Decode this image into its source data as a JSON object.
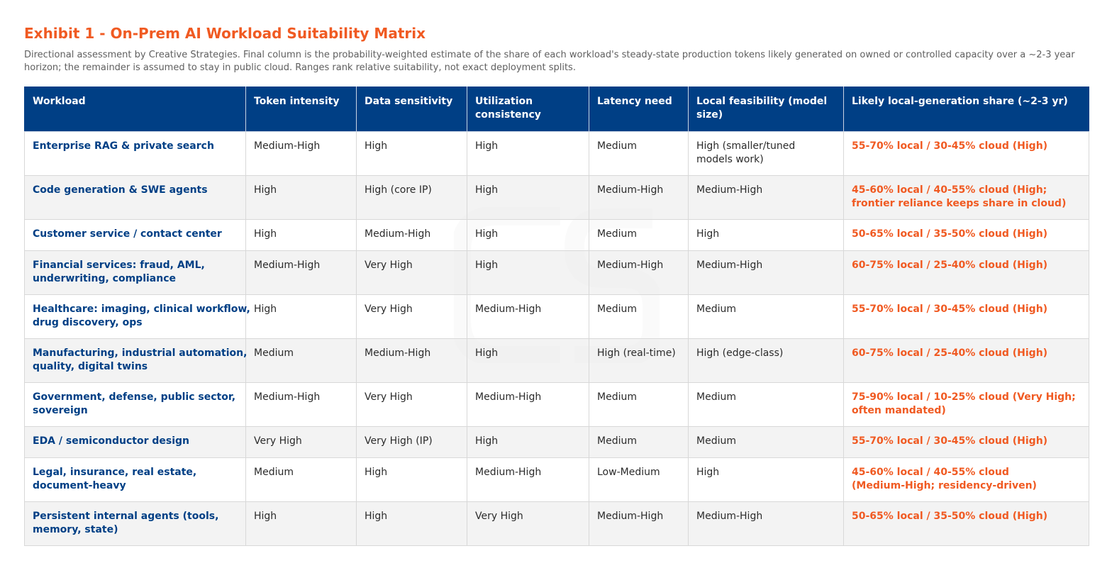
{
  "exhibit": {
    "title": "Exhibit 1 - On-Prem AI Workload Suitability Matrix",
    "subtitle_line1": "Directional assessment by Creative Strategies. Final column is the probability-weighted estimate of the share of each workload's steady-state production tokens likely generated on owned or controlled capacity over a ~2-3 year",
    "subtitle_line2": "horizon; the remainder is assumed to stay in public cloud. Ranges rank relative suitability, not exact deployment splits.",
    "watermark_icon": "cs-logo-watermark"
  },
  "table": {
    "headers": {
      "workload": "Workload",
      "token_intensity": "Token intensity",
      "data_sensitivity": "Data sensitivity",
      "utilization_1": "Utilization",
      "utilization_2": "consistency",
      "latency": "Latency need",
      "feasibility_1": "Local feasibility (model",
      "feasibility_2": "size)",
      "share": "Likely local-generation share (~2-3 yr)"
    },
    "rows": [
      {
        "workload_1": "Enterprise RAG & private search",
        "workload_2": "",
        "token_intensity": "Medium-High",
        "data_sensitivity": "High",
        "utilization": "High",
        "latency": "Medium",
        "feasibility_1": "High (smaller/tuned",
        "feasibility_2": "models work)",
        "share_1": "55-70% local / 30-45% cloud (High)",
        "share_2": ""
      },
      {
        "workload_1": "Code generation & SWE agents",
        "workload_2": "",
        "token_intensity": "High",
        "data_sensitivity": "High (core IP)",
        "utilization": "High",
        "latency": "Medium-High",
        "feasibility_1": "Medium-High",
        "feasibility_2": "",
        "share_1": "45-60% local / 40-55% cloud (High;",
        "share_2": "frontier reliance keeps share in cloud)"
      },
      {
        "workload_1": "Customer service / contact center",
        "workload_2": "",
        "token_intensity": "High",
        "data_sensitivity": "Medium-High",
        "utilization": "High",
        "latency": "Medium",
        "feasibility_1": "High",
        "feasibility_2": "",
        "share_1": "50-65% local / 35-50% cloud (High)",
        "share_2": ""
      },
      {
        "workload_1": "Financial services: fraud, AML,",
        "workload_2": "underwriting, compliance",
        "token_intensity": "Medium-High",
        "data_sensitivity": "Very High",
        "utilization": "High",
        "latency": "Medium-High",
        "feasibility_1": "Medium-High",
        "feasibility_2": "",
        "share_1": "60-75% local / 25-40% cloud (High)",
        "share_2": ""
      },
      {
        "workload_1": "Healthcare: imaging, clinical workflow,",
        "workload_2": "drug discovery, ops",
        "token_intensity": "High",
        "data_sensitivity": "Very High",
        "utilization": "Medium-High",
        "latency": "Medium",
        "feasibility_1": "Medium",
        "feasibility_2": "",
        "share_1": "55-70% local / 30-45% cloud (High)",
        "share_2": ""
      },
      {
        "workload_1": "Manufacturing, industrial automation,",
        "workload_2": "quality, digital twins",
        "token_intensity": "Medium",
        "data_sensitivity": "Medium-High",
        "utilization": "High",
        "latency": "High (real-time)",
        "feasibility_1": "High (edge-class)",
        "feasibility_2": "",
        "share_1": "60-75% local / 25-40% cloud (High)",
        "share_2": ""
      },
      {
        "workload_1": "Government, defense, public sector,",
        "workload_2": "sovereign",
        "token_intensity": "Medium-High",
        "data_sensitivity": "Very High",
        "utilization": "Medium-High",
        "latency": "Medium",
        "feasibility_1": "Medium",
        "feasibility_2": "",
        "share_1": "75-90% local / 10-25% cloud (Very High;",
        "share_2": "often mandated)"
      },
      {
        "workload_1": "EDA / semiconductor design",
        "workload_2": "",
        "token_intensity": "Very High",
        "data_sensitivity": "Very High (IP)",
        "utilization": "High",
        "latency": "Medium",
        "feasibility_1": "Medium",
        "feasibility_2": "",
        "share_1": "55-70% local / 30-45% cloud (High)",
        "share_2": ""
      },
      {
        "workload_1": "Legal, insurance, real estate,",
        "workload_2": "document-heavy",
        "token_intensity": "Medium",
        "data_sensitivity": "High",
        "utilization": "Medium-High",
        "latency": "Low-Medium",
        "feasibility_1": "High",
        "feasibility_2": "",
        "share_1": "45-60% local / 40-55% cloud",
        "share_2": "(Medium-High; residency-driven)"
      },
      {
        "workload_1": "Persistent internal agents (tools,",
        "workload_2": "memory, state)",
        "token_intensity": "High",
        "data_sensitivity": "High",
        "utilization": "Very High",
        "latency": "Medium-High",
        "feasibility_1": "Medium-High",
        "feasibility_2": "",
        "share_1": "50-65% local / 35-50% cloud (High)",
        "share_2": ""
      }
    ]
  }
}
